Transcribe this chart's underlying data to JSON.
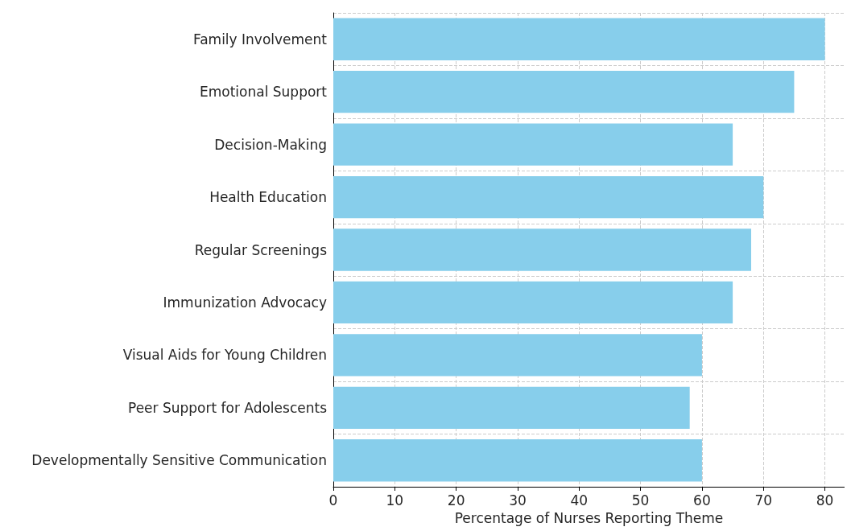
{
  "chart_data": {
    "type": "bar",
    "orientation": "horizontal",
    "xlabel": "Percentage of Nurses Reporting Theme",
    "categories": [
      "Family Involvement",
      "Emotional Support",
      "Decision-Making",
      "Health Education",
      "Regular Screenings",
      "Immunization Advocacy",
      "Visual Aids for Young Children",
      "Peer Support for Adolescents",
      "Developmentally Sensitive Communication"
    ],
    "values": [
      80,
      75,
      65,
      70,
      68,
      65,
      60,
      58,
      60
    ],
    "color": "#87ceeb",
    "xlim": [
      0,
      83.2
    ],
    "xticks": [
      0,
      10,
      20,
      30,
      40,
      50,
      60,
      70,
      80
    ],
    "grid": true
  }
}
